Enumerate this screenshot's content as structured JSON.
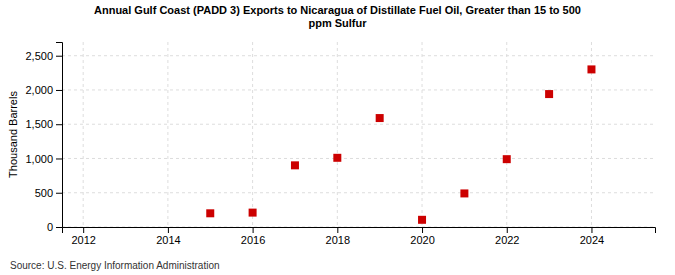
{
  "chart_data": {
    "type": "scatter",
    "title": "Annual Gulf Coast (PADD 3) Exports to Nicaragua of Distillate Fuel Oil, Greater than 15 to 500\nppm Sulfur",
    "y_label": "Thousand Barrels",
    "annotations": [
      "Source: U.S. Energy Information Administration"
    ],
    "x": [
      2015,
      2016,
      2017,
      2018,
      2019,
      2020,
      2021,
      2022,
      2023,
      2024
    ],
    "values": [
      200,
      210,
      900,
      1010,
      1590,
      105,
      490,
      990,
      1940,
      2300
    ],
    "color": "#cc0000",
    "marker": "square",
    "xlim": [
      2011.5,
      2025.5
    ],
    "ylim": [
      0,
      2700
    ],
    "xticks": [
      2012,
      2014,
      2016,
      2018,
      2020,
      2022,
      2024
    ],
    "yticks": [
      0,
      500,
      {
        "value": 1000,
        "label": "1,000"
      },
      {
        "value": 1500,
        "label": "1,500"
      },
      {
        "value": 2000,
        "label": "2,000"
      },
      {
        "value": 2500,
        "label": "2,500"
      }
    ],
    "grid": true
  }
}
